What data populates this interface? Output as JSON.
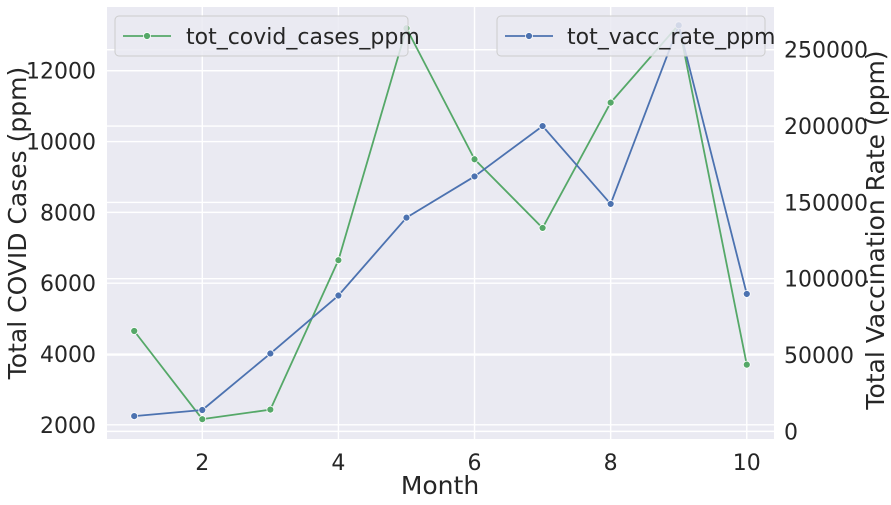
{
  "chart_data": {
    "type": "line",
    "xlabel": "Month",
    "ylabel": "Total COVID Cases (ppm)",
    "y2label": "Total Vaccination Rate (ppm)",
    "xlim": [
      0.6,
      10.4
    ],
    "ylim": [
      1600,
      13800
    ],
    "y2lim": [
      -5000,
      278000
    ],
    "x_ticks": [
      2,
      4,
      6,
      8,
      10
    ],
    "y_ticks": [
      2000,
      4000,
      6000,
      8000,
      10000,
      12000
    ],
    "y2_ticks": [
      0,
      50000,
      100000,
      150000,
      200000,
      250000
    ],
    "x": [
      1,
      2,
      3,
      4,
      5,
      6,
      7,
      8,
      9,
      10
    ],
    "grid": true,
    "series": [
      {
        "name": "tot_covid_cases_ppm",
        "axis": "left",
        "color": "#55a868",
        "values": [
          4650,
          2160,
          2430,
          6650,
          13200,
          9500,
          7560,
          11100,
          13300,
          3700
        ],
        "legend_position": "upper-left"
      },
      {
        "name": "tot_vacc_rate_ppm",
        "axis": "right",
        "color": "#4c72b0",
        "values": [
          10000,
          14000,
          51000,
          89000,
          140000,
          167000,
          200000,
          149000,
          266000,
          90000
        ],
        "legend_position": "upper-right"
      }
    ]
  }
}
